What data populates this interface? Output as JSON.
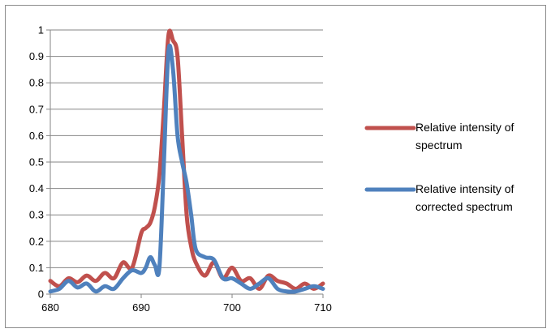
{
  "chart_data": {
    "type": "line",
    "title": "",
    "xlabel": "",
    "ylabel": "",
    "xlim": [
      680,
      710
    ],
    "ylim": [
      0,
      1
    ],
    "x_ticks": [
      "680",
      "690",
      "700",
      "710"
    ],
    "y_ticks": [
      "0",
      "0.1",
      "0.2",
      "0.3",
      "0.4",
      "0.5",
      "0.6",
      "0.7",
      "0.8",
      "0.9",
      "1"
    ],
    "grid": "horizontal",
    "legend_position": "right",
    "series": [
      {
        "name": "Relative intensity of spectrum",
        "color": "#c0504d",
        "legend_lines": [
          "Relative intensity of",
          "spectrum"
        ],
        "x": [
          680,
          681,
          682,
          683,
          684,
          685,
          686,
          687,
          688,
          689,
          690,
          690.5,
          691,
          691.5,
          692,
          692.5,
          693,
          693.5,
          694,
          694.5,
          695,
          695.5,
          696,
          697,
          698,
          699,
          700,
          701,
          702,
          703,
          704,
          705,
          706,
          707,
          708,
          709,
          710
        ],
        "y": [
          0.05,
          0.03,
          0.06,
          0.045,
          0.07,
          0.05,
          0.08,
          0.06,
          0.12,
          0.1,
          0.23,
          0.25,
          0.27,
          0.33,
          0.45,
          0.7,
          0.98,
          0.96,
          0.9,
          0.6,
          0.3,
          0.18,
          0.12,
          0.07,
          0.12,
          0.06,
          0.1,
          0.05,
          0.06,
          0.02,
          0.07,
          0.05,
          0.04,
          0.02,
          0.04,
          0.02,
          0.04
        ]
      },
      {
        "name": "Relative intensity of corrected spectrum",
        "color": "#4f81bd",
        "legend_lines": [
          "Relative intensity of",
          "corrected spectrum"
        ],
        "x": [
          680,
          681,
          682,
          683,
          684,
          685,
          686,
          687,
          688,
          689,
          690,
          690.5,
          691,
          691.5,
          692,
          692.5,
          693,
          693.5,
          694,
          694.5,
          695,
          695.5,
          696,
          697,
          698,
          699,
          700,
          701,
          702,
          703,
          704,
          705,
          706,
          707,
          708,
          709,
          710
        ],
        "y": [
          0.01,
          0.02,
          0.05,
          0.025,
          0.04,
          0.01,
          0.03,
          0.02,
          0.06,
          0.09,
          0.08,
          0.1,
          0.14,
          0.11,
          0.1,
          0.5,
          0.92,
          0.85,
          0.6,
          0.5,
          0.42,
          0.3,
          0.17,
          0.14,
          0.13,
          0.06,
          0.06,
          0.04,
          0.02,
          0.04,
          0.06,
          0.02,
          0.01,
          0.01,
          0.02,
          0.03,
          0.02
        ]
      }
    ]
  }
}
